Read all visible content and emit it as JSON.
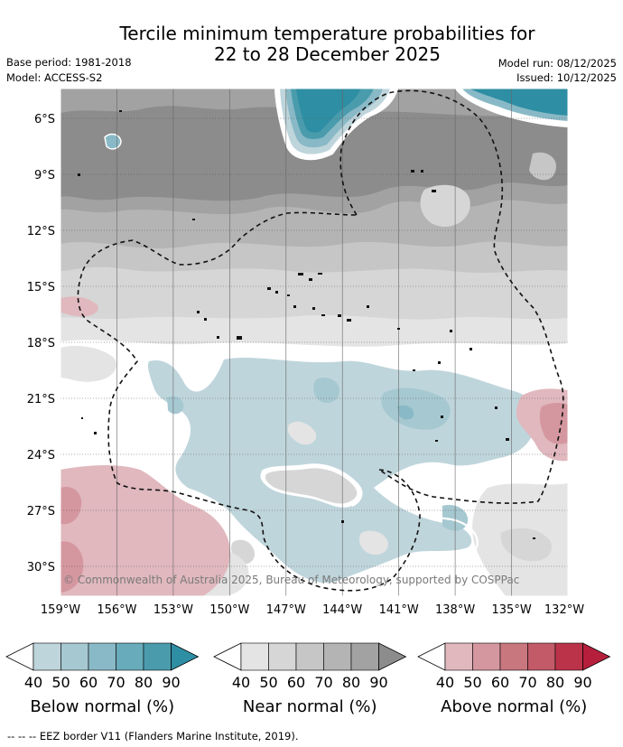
{
  "header": {
    "title_line1": "Tercile minimum temperature probabilities for",
    "title_line2": "22 to 28 December 2025",
    "base_period": "Base period: 1981-2018",
    "model": "Model: ACCESS-S2",
    "model_run": "Model run: 08/12/2025",
    "issued": "Issued: 10/12/2025"
  },
  "map": {
    "lat_labels": [
      "6°S",
      "9°S",
      "12°S",
      "15°S",
      "18°S",
      "21°S",
      "24°S",
      "27°S",
      "30°S"
    ],
    "lon_labels": [
      "159°W",
      "156°W",
      "153°W",
      "150°W",
      "147°W",
      "144°W",
      "141°W",
      "138°W",
      "135°W",
      "132°W"
    ],
    "copyright": "© Commonwealth of Australia 2025, Bureau of Meteorology, supported by COSPPac"
  },
  "colorbars": [
    {
      "title": "Below normal (%)",
      "ticks": [
        "40",
        "50",
        "60",
        "70",
        "80",
        "90"
      ],
      "colors": [
        "#bfd5dc",
        "#a6c8d1",
        "#89b9c6",
        "#68abbb",
        "#4a9cad"
      ],
      "end_color": "#2e8ea3"
    },
    {
      "title": "Near normal (%)",
      "ticks": [
        "40",
        "50",
        "60",
        "70",
        "80",
        "90"
      ],
      "colors": [
        "#e4e4e4",
        "#d6d6d6",
        "#c6c6c6",
        "#b4b4b4",
        "#a2a2a2"
      ],
      "end_color": "#8c8c8c"
    },
    {
      "title": "Above normal (%)",
      "ticks": [
        "40",
        "50",
        "60",
        "70",
        "80",
        "90"
      ],
      "colors": [
        "#e0b8be",
        "#d5979f",
        "#c9777f",
        "#c25a68",
        "#bb3349"
      ],
      "end_color": "#b51f3c"
    }
  ],
  "footer": {
    "legend_symbol": "-- -- --",
    "legend_text": "EEZ border V11 (Flanders Marine Institute, 2019)."
  }
}
